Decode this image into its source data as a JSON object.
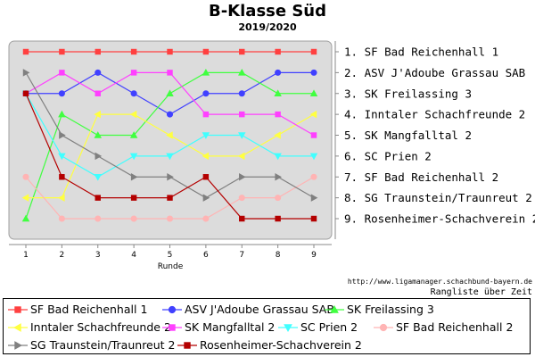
{
  "header": {
    "title": "B-Klasse Süd",
    "subtitle": "2019/2020"
  },
  "footer": {
    "url": "http://www.ligamanager.schachbund-bayern.de",
    "caption": "Rangliste über Zeit"
  },
  "chart_data": {
    "type": "line",
    "xlabel": "Runde",
    "ylabel": "",
    "x": [
      1,
      2,
      3,
      4,
      5,
      6,
      7,
      8,
      9
    ],
    "xlim": [
      1,
      9
    ],
    "ylim": [
      1,
      9
    ],
    "y_inverted": true,
    "grid": false,
    "background": "#dcdcdc",
    "legend_position": "bottom",
    "right_labels": [
      "1. SF Bad Reichenhall 1",
      "2. ASV J'Adoube Grassau SAB",
      "3. SK Freilassing 3",
      "4. Inntaler Schachfreunde 2",
      "5. SK Mangfalltal 2",
      "6. SC Prien 2",
      "7. SF Bad Reichenhall 2",
      "8. SG Traunstein/Traunreut 2",
      "9. Rosenheimer-Schachverein 2"
    ],
    "series": [
      {
        "name": "SF Bad Reichenhall 1",
        "color": "#ff4040",
        "marker": "square",
        "values": [
          1,
          1,
          1,
          1,
          1,
          1,
          1,
          1,
          1
        ]
      },
      {
        "name": "ASV J'Adoube Grassau SAB",
        "color": "#4040ff",
        "marker": "circle",
        "values": [
          3,
          3,
          2,
          3,
          4,
          3,
          3,
          2,
          2
        ]
      },
      {
        "name": "SK Freilassing 3",
        "color": "#40ff40",
        "marker": "triangle-up",
        "values": [
          9,
          4,
          5,
          5,
          3,
          2,
          2,
          3,
          3
        ]
      },
      {
        "name": "Inntaler Schachfreunde 2",
        "color": "#ffff40",
        "marker": "triangle-left",
        "values": [
          8,
          8,
          4,
          4,
          5,
          6,
          6,
          5,
          4
        ]
      },
      {
        "name": "SK Mangfalltal 2",
        "color": "#ff40ff",
        "marker": "square",
        "values": [
          3,
          2,
          3,
          2,
          2,
          4,
          4,
          4,
          5
        ]
      },
      {
        "name": "SC Prien 2",
        "color": "#40ffff",
        "marker": "triangle-down",
        "values": [
          3,
          6,
          7,
          6,
          6,
          5,
          5,
          6,
          6
        ]
      },
      {
        "name": "SF Bad Reichenhall 2",
        "color": "#ffb4b4",
        "marker": "circle",
        "values": [
          7,
          9,
          9,
          9,
          9,
          9,
          8,
          8,
          7
        ]
      },
      {
        "name": "SG Traunstein/Traunreut 2",
        "color": "#808080",
        "marker": "triangle-right",
        "values": [
          2,
          5,
          6,
          7,
          7,
          8,
          7,
          7,
          8
        ]
      },
      {
        "name": "Rosenheimer-Schachverein 2",
        "color": "#b40000",
        "marker": "square",
        "values": [
          3,
          7,
          8,
          8,
          8,
          7,
          9,
          9,
          9
        ]
      }
    ]
  }
}
